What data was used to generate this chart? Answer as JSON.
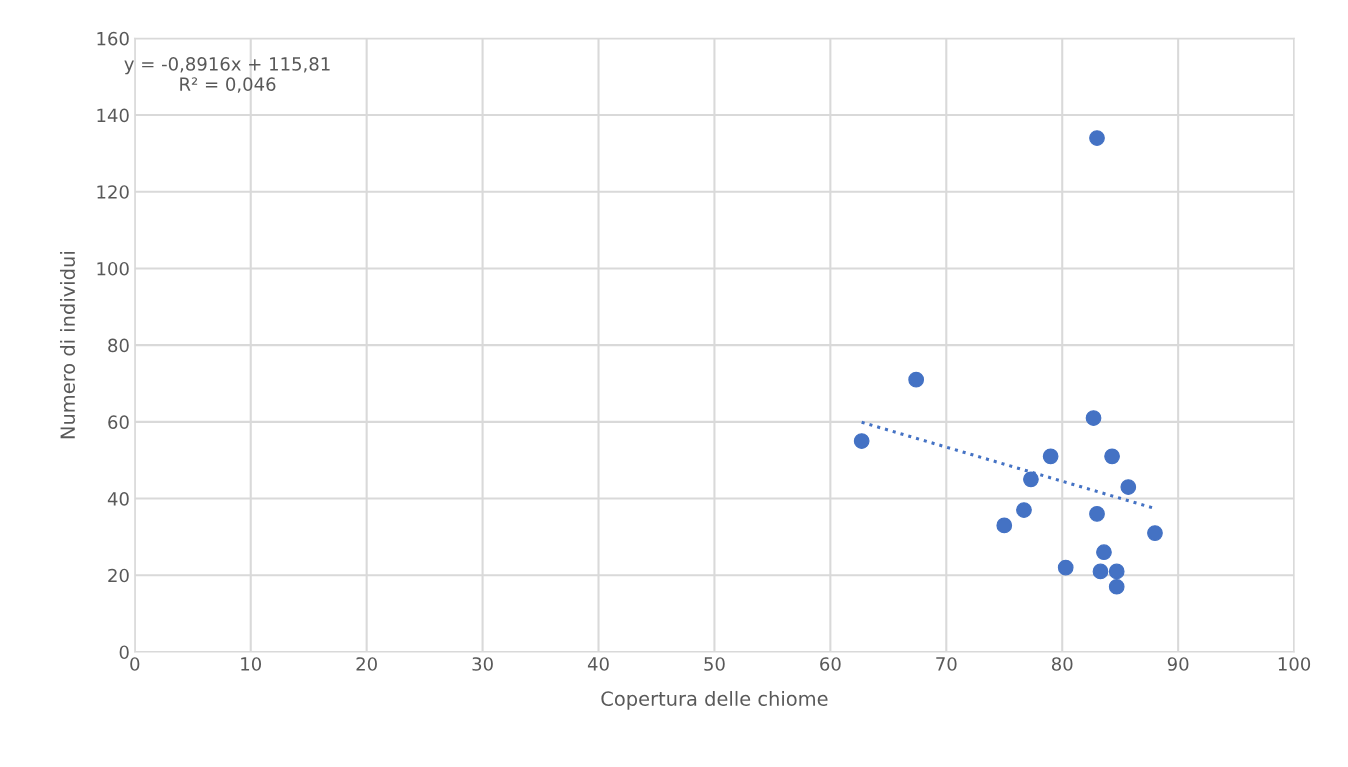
{
  "chart_data": {
    "type": "scatter",
    "xlabel": "Copertura delle chiome",
    "ylabel": "Numero di individui",
    "xlim": [
      0,
      100
    ],
    "xticks": [
      0,
      10,
      20,
      30,
      40,
      50,
      60,
      70,
      80,
      90,
      100
    ],
    "ylim": [
      0,
      160
    ],
    "yticks": [
      0,
      20,
      40,
      60,
      80,
      100,
      120,
      140,
      160
    ],
    "grid": true,
    "marker": "circle",
    "annotations": [
      "y = -0,8916x + 115,81\nR² = 0,046"
    ],
    "series": [
      {
        "color": "#4472c4",
        "x": [
          62.7,
          67.4,
          82.7,
          83.0,
          79.0,
          84.3,
          77.3,
          85.7,
          76.7,
          83.0,
          75.0,
          88.0,
          83.6,
          80.3,
          83.3,
          84.7,
          84.7
        ],
        "values": [
          55,
          71,
          61,
          134,
          51,
          51,
          45,
          43,
          37,
          36,
          33,
          31,
          26,
          22,
          21,
          21,
          17
        ]
      },
      {
        "type": "line",
        "color": "#4472c4",
        "line_style": "dotted",
        "marker": "none",
        "x": [
          62.7,
          88.0
        ],
        "values": [
          59.9,
          37.4
        ]
      }
    ]
  }
}
